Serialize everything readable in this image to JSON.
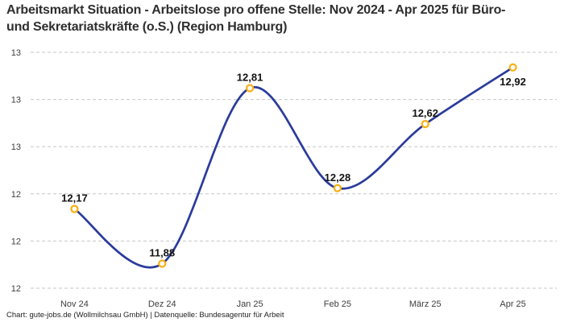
{
  "title": {
    "line1": "Arbeitsmarkt Situation - Arbeitslose pro offene Stelle: Nov 2024 - Apr 2025 für Büro-",
    "line2": "und Sekretariatskräfte (o.S.) (Region Hamburg)"
  },
  "footer": "Chart: gute-jobs.de (Wollmilchsau GmbH) | Datenquelle: Bundesagentur für Arbeit",
  "chart_data": {
    "type": "line",
    "title": "Arbeitsmarkt Situation - Arbeitslose pro offene Stelle: Nov 2024 - Apr 2025 für Büro- und Sekretariatskräfte (o.S.) (Region Hamburg)",
    "categories": [
      "Nov 24",
      "Dez 24",
      "Jan 25",
      "Feb 25",
      "März 25",
      "Apr 25"
    ],
    "values": [
      12.17,
      11.88,
      12.81,
      12.28,
      12.62,
      12.92
    ],
    "value_labels": [
      "12,17",
      "11,88",
      "12,81",
      "12,28",
      "12,62",
      "12,92"
    ],
    "label_placement": [
      "above",
      "above",
      "above",
      "above",
      "above",
      "below"
    ],
    "xlabel": "",
    "ylabel": "",
    "ylim": [
      11.75,
      13.0
    ],
    "yticks": [
      {
        "value": 13.0,
        "label": "13"
      },
      {
        "value": 12.75,
        "label": "13"
      },
      {
        "value": 12.5,
        "label": "13"
      },
      {
        "value": 12.25,
        "label": "12"
      },
      {
        "value": 12.0,
        "label": "12"
      },
      {
        "value": 11.75,
        "label": "12"
      }
    ],
    "grid": "dashed-horizontal",
    "legend_position": "none",
    "line_shape": "smooth-spline",
    "colors": {
      "line": "#2a3b9b",
      "marker_ring": "#f8b218",
      "marker_fill": "#ffffff",
      "grid": "#c6c6c6",
      "title_text": "#2e2e2e",
      "tick_text": "#3d3d3d",
      "value_label_text": "#121212",
      "background": "#ffffff"
    }
  }
}
